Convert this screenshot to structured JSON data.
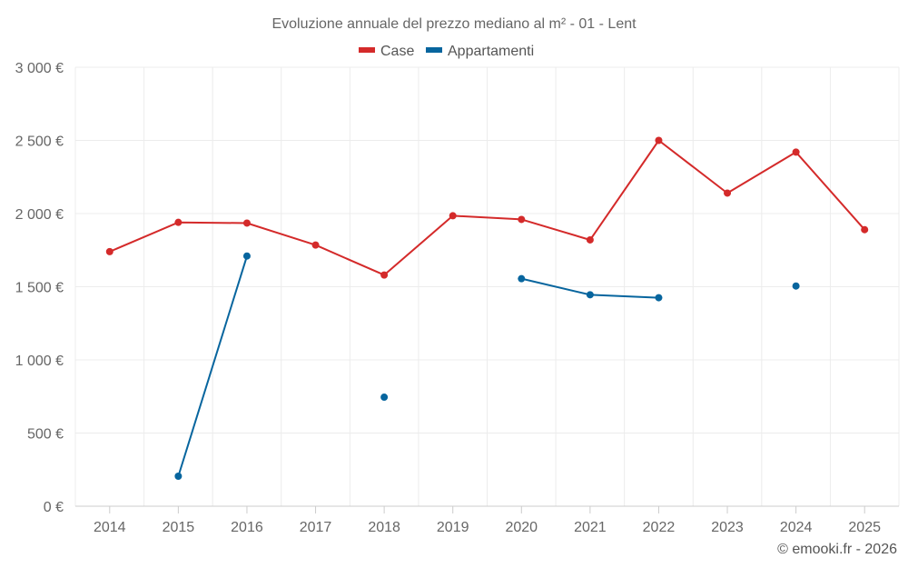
{
  "chart_data": {
    "type": "line",
    "title": "Evoluzione annuale del prezzo mediano al m² - 01 - Lent",
    "categories": [
      "2014",
      "2015",
      "2016",
      "2017",
      "2018",
      "2019",
      "2020",
      "2021",
      "2022",
      "2023",
      "2024",
      "2025"
    ],
    "ylim": [
      0,
      3000
    ],
    "yticks": [
      0,
      500,
      1000,
      1500,
      2000,
      2500,
      3000
    ],
    "ytick_labels": [
      "0 €",
      "500 €",
      "1 000 €",
      "1 500 €",
      "2 000 €",
      "2 500 €",
      "3 000 €"
    ],
    "grid": true,
    "legend_position": "top-center",
    "series": [
      {
        "name": "Case",
        "color": "#d42a2a",
        "values": [
          1740,
          1940,
          1935,
          1785,
          1580,
          1985,
          1960,
          1820,
          2500,
          2140,
          2420,
          1890
        ]
      },
      {
        "name": "Appartamenti",
        "color": "#07659e",
        "values": [
          null,
          205,
          1710,
          null,
          745,
          null,
          1555,
          1445,
          1425,
          null,
          1505,
          null
        ]
      }
    ]
  },
  "credit": "© emooki.fr - 2026"
}
